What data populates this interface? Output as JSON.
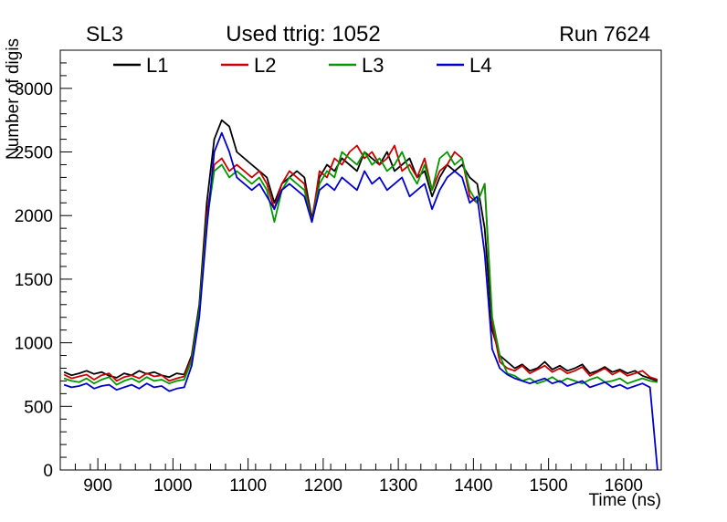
{
  "header": {
    "left": "SL3",
    "center": "Used ttrig: 1052",
    "right": "Run 7624"
  },
  "chart_data": {
    "type": "line",
    "title": "",
    "xlabel": "Time (ns)",
    "ylabel": "Number of digis",
    "xlim": [
      850,
      1650
    ],
    "ylim": [
      0,
      3300
    ],
    "x_ticks": [
      900,
      1000,
      1100,
      1200,
      1300,
      1400,
      1500,
      1600
    ],
    "y_ticks": [
      0,
      500,
      1000,
      1500,
      2000,
      2500,
      3000
    ],
    "x_minor_step": 20,
    "y_minor_step": 100,
    "grid": false,
    "legend_position": "top-inside-horizontal",
    "x": [
      855,
      865,
      875,
      885,
      895,
      905,
      915,
      925,
      935,
      945,
      955,
      965,
      975,
      985,
      995,
      1005,
      1015,
      1025,
      1035,
      1045,
      1055,
      1065,
      1075,
      1085,
      1095,
      1105,
      1115,
      1125,
      1135,
      1145,
      1155,
      1165,
      1175,
      1185,
      1195,
      1205,
      1215,
      1225,
      1235,
      1245,
      1255,
      1265,
      1275,
      1285,
      1295,
      1305,
      1315,
      1325,
      1335,
      1345,
      1355,
      1365,
      1375,
      1385,
      1395,
      1405,
      1415,
      1425,
      1435,
      1445,
      1455,
      1465,
      1475,
      1485,
      1495,
      1505,
      1515,
      1525,
      1535,
      1545,
      1555,
      1565,
      1575,
      1585,
      1595,
      1605,
      1615,
      1625,
      1635,
      1645
    ],
    "series": [
      {
        "name": "L1",
        "color": "#000000",
        "values": [
          770,
          745,
          760,
          780,
          755,
          770,
          740,
          725,
          760,
          745,
          780,
          755,
          770,
          745,
          730,
          760,
          750,
          900,
          1300,
          2100,
          2600,
          2750,
          2700,
          2500,
          2450,
          2400,
          2350,
          2300,
          2100,
          2250,
          2300,
          2350,
          2300,
          1975,
          2300,
          2400,
          2350,
          2450,
          2400,
          2350,
          2500,
          2450,
          2400,
          2500,
          2350,
          2400,
          2450,
          2300,
          2350,
          2150,
          2300,
          2400,
          2350,
          2400,
          2300,
          2250,
          1900,
          1100,
          900,
          850,
          800,
          830,
          780,
          800,
          850,
          790,
          820,
          780,
          800,
          830,
          760,
          780,
          810,
          770,
          790,
          760,
          780,
          740,
          720,
          700
        ]
      },
      {
        "name": "L2",
        "color": "#cc0000",
        "values": [
          750,
          720,
          735,
          750,
          710,
          745,
          760,
          700,
          730,
          745,
          720,
          760,
          735,
          745,
          700,
          720,
          735,
          880,
          1250,
          2000,
          2400,
          2450,
          2350,
          2400,
          2350,
          2300,
          2350,
          2250,
          2050,
          2250,
          2350,
          2300,
          2250,
          1950,
          2350,
          2300,
          2450,
          2400,
          2500,
          2550,
          2450,
          2500,
          2400,
          2450,
          2550,
          2350,
          2400,
          2300,
          2450,
          2200,
          2350,
          2400,
          2500,
          2450,
          2150,
          2100,
          2250,
          1150,
          850,
          800,
          780,
          820,
          760,
          790,
          820,
          770,
          800,
          760,
          780,
          810,
          740,
          770,
          800,
          750,
          780,
          740,
          760,
          780,
          730,
          710
        ]
      },
      {
        "name": "L3",
        "color": "#009900",
        "values": [
          720,
          700,
          690,
          720,
          680,
          710,
          730,
          670,
          700,
          720,
          690,
          730,
          700,
          710,
          680,
          700,
          710,
          860,
          1250,
          1950,
          2350,
          2400,
          2300,
          2350,
          2300,
          2250,
          2300,
          2200,
          1950,
          2200,
          2300,
          2250,
          2200,
          1950,
          2250,
          2350,
          2300,
          2500,
          2450,
          2400,
          2500,
          2400,
          2450,
          2350,
          2400,
          2500,
          2350,
          2250,
          2400,
          2200,
          2450,
          2500,
          2400,
          2450,
          2200,
          2100,
          2250,
          1200,
          900,
          760,
          740,
          700,
          720,
          680,
          700,
          730,
          690,
          720,
          700,
          680,
          710,
          730,
          690,
          700,
          720,
          680,
          700,
          720,
          700,
          690
        ]
      },
      {
        "name": "L4",
        "color": "#0000cc",
        "values": [
          670,
          650,
          660,
          680,
          640,
          660,
          670,
          630,
          650,
          670,
          640,
          680,
          650,
          660,
          620,
          640,
          650,
          820,
          1200,
          1900,
          2500,
          2650,
          2500,
          2300,
          2250,
          2200,
          2250,
          2150,
          2050,
          2200,
          2250,
          2200,
          2150,
          1950,
          2200,
          2250,
          2200,
          2300,
          2250,
          2200,
          2350,
          2250,
          2300,
          2200,
          2250,
          2300,
          2150,
          2200,
          2250,
          2050,
          2200,
          2300,
          2350,
          2300,
          2100,
          2150,
          1700,
          950,
          800,
          750,
          720,
          700,
          680,
          700,
          720,
          680,
          700,
          660,
          680,
          700,
          650,
          670,
          690,
          650,
          670,
          640,
          660,
          680,
          650,
          0
        ]
      }
    ]
  }
}
